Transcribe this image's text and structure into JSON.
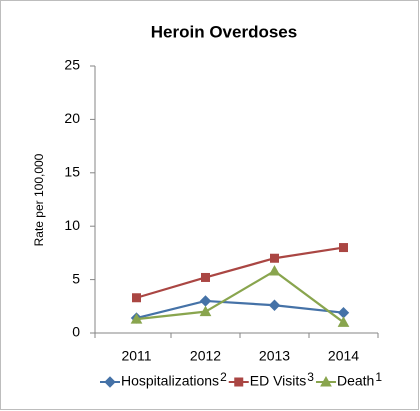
{
  "chart_data": {
    "type": "line",
    "title": "Heroin Overdoses",
    "y_label": "Rate per 100,000",
    "categories": [
      "2011",
      "2012",
      "2013",
      "2014"
    ],
    "series": [
      {
        "name": "Hospitalizations",
        "footnote": "2",
        "color": "#4572a7",
        "marker": "diamond",
        "values": [
          1.4,
          3.0,
          2.6,
          1.9
        ]
      },
      {
        "name": "ED Visits",
        "footnote": "3",
        "color": "#aa4643",
        "marker": "square",
        "values": [
          3.3,
          5.2,
          7.0,
          8.0
        ]
      },
      {
        "name": "Death",
        "footnote": "1",
        "color": "#89a54e",
        "marker": "triangle",
        "values": [
          1.3,
          2.0,
          5.8,
          1.0
        ]
      }
    ],
    "ylim": [
      0,
      25
    ],
    "yticks": [
      0,
      5,
      10,
      15,
      20,
      25
    ],
    "grid": false,
    "legend": "bottom"
  }
}
